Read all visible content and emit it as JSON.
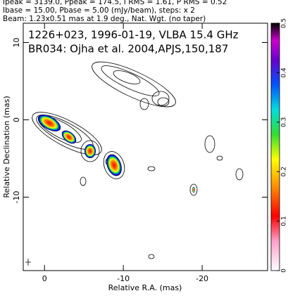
{
  "header": [
    "Ipeak = 3139.0, Ppeak = 174.5, I RMS = 1.61, P RMS = 0.52",
    "Ibase = 15.00, Pbase = 5.00 (mJy/beam), steps: x 2",
    "Beam: 1.23x0.51 mas at 1.9 deg., Nat. Wgt. (no taper)"
  ],
  "chart_data": {
    "type": "contour",
    "annotations": [
      "1226+023, 1996-01-19, VLBA 15.4 GHz",
      "BR034: Ojha et al. 2004,APJS,150,187"
    ],
    "x_label": "Relative R.A. (mas)",
    "y_label": "Relative Declination (mas)",
    "xlim": [
      2.7,
      -28.3
    ],
    "xticks": [
      0,
      -10,
      -20
    ],
    "ylim": [
      -19.5,
      12.5
    ],
    "yticks": [
      -10,
      0,
      10
    ],
    "clim": [
      0,
      0.5
    ],
    "cticks": [
      0,
      0.1,
      0.2,
      0.3,
      0.4,
      0.5
    ]
  }
}
